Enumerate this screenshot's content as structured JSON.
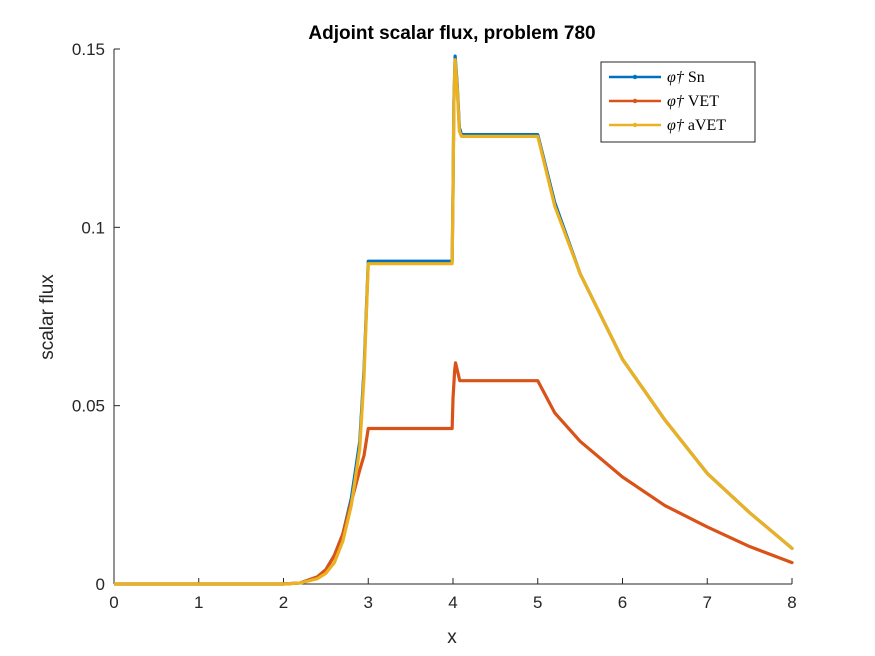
{
  "chart_data": {
    "type": "line",
    "title": "Adjoint scalar flux, problem 780",
    "xlabel": "x",
    "ylabel": "scalar flux",
    "xlim": [
      0,
      8
    ],
    "ylim": [
      0,
      0.15
    ],
    "xticks": [
      0,
      1,
      2,
      3,
      4,
      5,
      6,
      7,
      8
    ],
    "xtick_labels": [
      "0",
      "1",
      "2",
      "3",
      "4",
      "5",
      "6",
      "7",
      "8"
    ],
    "yticks": [
      0,
      0.05,
      0.1,
      0.15
    ],
    "ytick_labels": [
      "0",
      "0.05",
      "0.1",
      "0.15"
    ],
    "grid": false,
    "legend_position": "top-right",
    "series": [
      {
        "name": "Sn",
        "symbol": "φ†",
        "color": "#0072BD",
        "x": [
          0,
          2.0,
          2.2,
          2.4,
          2.5,
          2.6,
          2.7,
          2.8,
          2.9,
          2.95,
          3.0,
          3.1,
          3.5,
          3.99,
          4.0,
          4.01,
          4.025,
          4.05,
          4.075,
          4.1,
          4.5,
          4.99,
          5.0,
          5.2,
          5.5,
          6.0,
          6.5,
          7.0,
          7.5,
          8.0
        ],
        "y": [
          0,
          0.0,
          0.0003,
          0.002,
          0.004,
          0.008,
          0.014,
          0.024,
          0.04,
          0.06,
          0.0905,
          0.0905,
          0.0905,
          0.0905,
          0.11,
          0.135,
          0.148,
          0.14,
          0.128,
          0.126,
          0.126,
          0.126,
          0.126,
          0.107,
          0.087,
          0.063,
          0.046,
          0.031,
          0.02,
          0.01
        ]
      },
      {
        "name": "VET",
        "symbol": "φ†",
        "color": "#D95319",
        "x": [
          0,
          2.0,
          2.2,
          2.4,
          2.5,
          2.6,
          2.7,
          2.8,
          2.9,
          2.95,
          3.0,
          3.1,
          3.5,
          3.95,
          3.99,
          4.0,
          4.02,
          4.03,
          4.05,
          4.08,
          4.1,
          4.5,
          4.99,
          5.0,
          5.2,
          5.5,
          6.0,
          6.5,
          7.0,
          7.5,
          8.0
        ],
        "y": [
          0,
          0.0,
          0.0003,
          0.002,
          0.004,
          0.008,
          0.014,
          0.023,
          0.032,
          0.036,
          0.0436,
          0.0436,
          0.0436,
          0.0436,
          0.0436,
          0.052,
          0.06,
          0.062,
          0.06,
          0.057,
          0.057,
          0.057,
          0.057,
          0.057,
          0.048,
          0.04,
          0.03,
          0.022,
          0.016,
          0.0105,
          0.006
        ]
      },
      {
        "name": "aVET",
        "symbol": "φ†",
        "color": "#EDB120",
        "x": [
          0,
          2.0,
          2.2,
          2.4,
          2.5,
          2.6,
          2.7,
          2.8,
          2.9,
          2.95,
          3.0,
          3.1,
          3.5,
          3.99,
          4.0,
          4.01,
          4.025,
          4.05,
          4.075,
          4.1,
          4.5,
          4.99,
          5.0,
          5.2,
          5.5,
          6.0,
          6.5,
          7.0,
          7.5,
          8.0
        ],
        "y": [
          0,
          0.0,
          0.0003,
          0.0015,
          0.003,
          0.006,
          0.012,
          0.022,
          0.038,
          0.058,
          0.0898,
          0.0898,
          0.0898,
          0.0898,
          0.109,
          0.134,
          0.147,
          0.139,
          0.127,
          0.1255,
          0.1255,
          0.1255,
          0.1255,
          0.106,
          0.087,
          0.063,
          0.046,
          0.031,
          0.02,
          0.01
        ]
      }
    ]
  }
}
